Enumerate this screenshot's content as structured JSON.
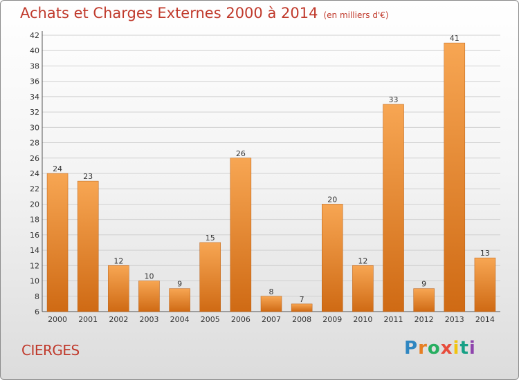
{
  "header": {
    "title": "Achats et Charges Externes 2000 à 2014",
    "unit": "(en milliers d'€)"
  },
  "footer": {
    "commune": "CIERGES",
    "logo_letters": [
      "P",
      "r",
      "o",
      "x",
      "i",
      "t",
      "i"
    ],
    "logo_colors": [
      "#2e86c1",
      "#e67e22",
      "#27ae60",
      "#e74c3c",
      "#f1c40f",
      "#16a085",
      "#8e44ad"
    ]
  },
  "colors": {
    "bar_light": "#f7a653",
    "bar_dark": "#cf6a14",
    "title": "#c0392b",
    "grid": "#d0d0d0"
  },
  "chart_data": {
    "type": "bar",
    "title": "Achats et Charges Externes 2000 à 2014",
    "subtitle": "(en milliers d'€)",
    "categories": [
      "2000",
      "2001",
      "2002",
      "2003",
      "2004",
      "2005",
      "2006",
      "2007",
      "2008",
      "2009",
      "2010",
      "2011",
      "2012",
      "2013",
      "2014"
    ],
    "values": [
      24,
      23,
      12,
      10,
      9,
      15,
      26,
      8,
      7,
      20,
      12,
      33,
      9,
      41,
      13
    ],
    "ylim": [
      6,
      42
    ],
    "yticks": [
      6,
      8,
      10,
      12,
      14,
      16,
      18,
      20,
      22,
      24,
      26,
      28,
      30,
      32,
      34,
      36,
      38,
      40,
      42
    ],
    "grid": true,
    "legend": "none"
  }
}
